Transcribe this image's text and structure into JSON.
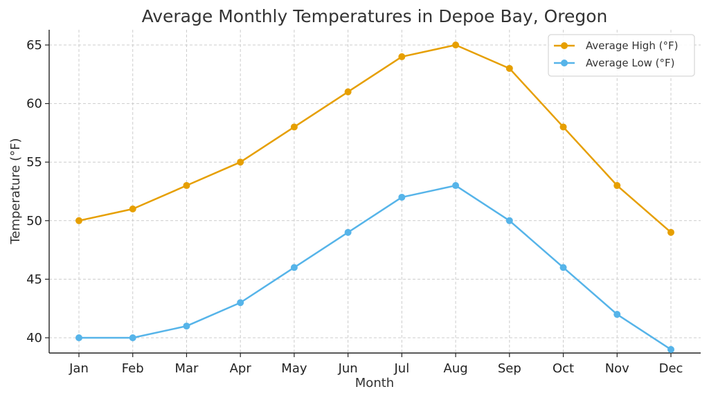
{
  "chart_data": {
    "type": "line",
    "title": "Average Monthly Temperatures in Depoe Bay, Oregon",
    "xlabel": "Month",
    "ylabel": "Temperature (°F)",
    "categories": [
      "Jan",
      "Feb",
      "Mar",
      "Apr",
      "May",
      "Jun",
      "Jul",
      "Aug",
      "Sep",
      "Oct",
      "Nov",
      "Dec"
    ],
    "ylim": [
      38.7,
      66.3
    ],
    "yticks": [
      40,
      45,
      50,
      55,
      60,
      65
    ],
    "ytick_labels": [
      "40",
      "45",
      "50",
      "55",
      "60",
      "65"
    ],
    "grid": true,
    "legend_position": "top-right",
    "series": [
      {
        "name": "Average High (°F)",
        "color": "#E69F00",
        "values": [
          50,
          51,
          53,
          55,
          58,
          61,
          64,
          65,
          63,
          58,
          53,
          49
        ]
      },
      {
        "name": "Average Low (°F)",
        "color": "#56B4E9",
        "values": [
          40,
          40,
          41,
          43,
          46,
          49,
          52,
          53,
          50,
          46,
          42,
          39
        ]
      }
    ]
  }
}
